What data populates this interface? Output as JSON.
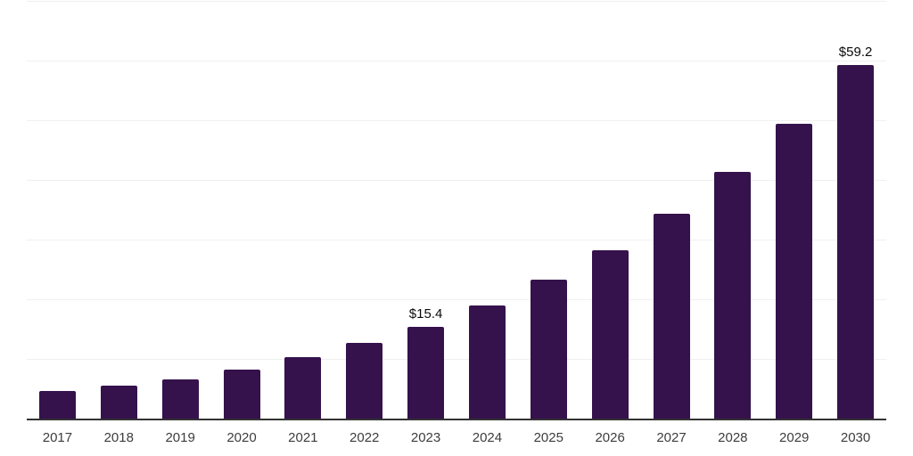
{
  "chart_data": {
    "type": "bar",
    "title": "",
    "xlabel": "",
    "ylabel": "",
    "categories": [
      "2017",
      "2018",
      "2019",
      "2020",
      "2021",
      "2022",
      "2023",
      "2024",
      "2025",
      "2026",
      "2027",
      "2028",
      "2029",
      "2030"
    ],
    "values": [
      4.7,
      5.5,
      6.6,
      8.2,
      10.3,
      12.7,
      15.4,
      18.9,
      23.3,
      28.2,
      34.3,
      41.4,
      49.4,
      59.2
    ],
    "data_labels": [
      {
        "category": "2023",
        "text": "$15.4"
      },
      {
        "category": "2030",
        "text": "$59.2"
      }
    ],
    "ylim": [
      0,
      70
    ],
    "gridline_step": 10,
    "grid": "horizontal",
    "y_tick_labels": "hidden",
    "legend": "none",
    "colors": {
      "bar": "#35124c",
      "gridline": "#f0f0f0",
      "axis_line": "#333333",
      "tick_label": "#3d3d3d",
      "value_label": "#0a0a0a",
      "background": "#ffffff"
    }
  }
}
